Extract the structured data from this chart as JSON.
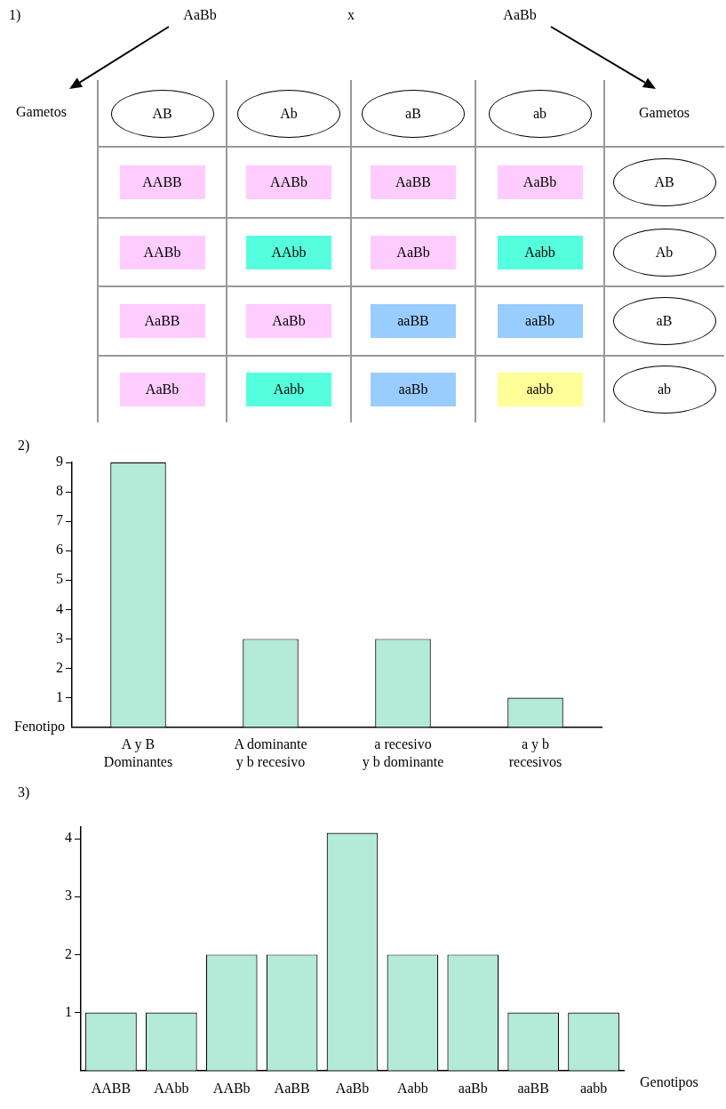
{
  "chart_data": [
    {
      "type": "other",
      "title": "1)",
      "annotations": [
        "AaBb",
        "x",
        "AaBb"
      ],
      "xlabel": "Gametos",
      "y2label": "Gametos",
      "categories": [
        "AB",
        "Ab",
        "aB",
        "ab"
      ],
      "y2_categories": [
        "AB",
        "Ab",
        "aB",
        "ab"
      ],
      "cell_labels": [
        [
          "AABB",
          "AABb",
          "AaBB",
          "AaBb"
        ],
        [
          "AABb",
          "AAbb",
          "AaBb",
          "Aabb"
        ],
        [
          "AaBB",
          "AaBb",
          "aaBB",
          "aaBb"
        ],
        [
          "AaBb",
          "Aabb",
          "aaBb",
          "aabb"
        ]
      ],
      "colors": [
        [
          "#ffccff",
          "#ffccff",
          "#ffccff",
          "#ffccff"
        ],
        [
          "#ffccff",
          "#55ffdd",
          "#ffccff",
          "#55ffdd"
        ],
        [
          "#ffccff",
          "#ffccff",
          "#99ccff",
          "#99ccff"
        ],
        [
          "#ffccff",
          "#55ffdd",
          "#99ccff",
          "#ffff99"
        ]
      ]
    },
    {
      "type": "bar",
      "title": "2)",
      "xlabel": "Fenotipo",
      "categories": [
        "A y B\nDominantes",
        "A dominante\ny b recesivo",
        "a recesivo\ny b dominante",
        "a y b\nrecesivos"
      ],
      "values": [
        9,
        3,
        3,
        1
      ],
      "color": "#b3ead8",
      "ylim": [
        0,
        9
      ],
      "yticks": [
        1,
        2,
        3,
        4,
        5,
        6,
        7,
        8,
        9
      ]
    },
    {
      "type": "bar",
      "title": "3)",
      "xlabel": "Genotipos",
      "categories": [
        "AABB",
        "AAbb",
        "AABb",
        "AaBB",
        "AaBb",
        "Aabb",
        "aaBb",
        "aaBB",
        "aabb"
      ],
      "values": [
        1,
        1,
        2,
        2,
        4.1,
        2,
        2,
        1,
        1
      ],
      "color": "#b3ead8",
      "ylim": [
        0,
        4.2
      ],
      "yticks": [
        1,
        2,
        3,
        4
      ]
    }
  ]
}
